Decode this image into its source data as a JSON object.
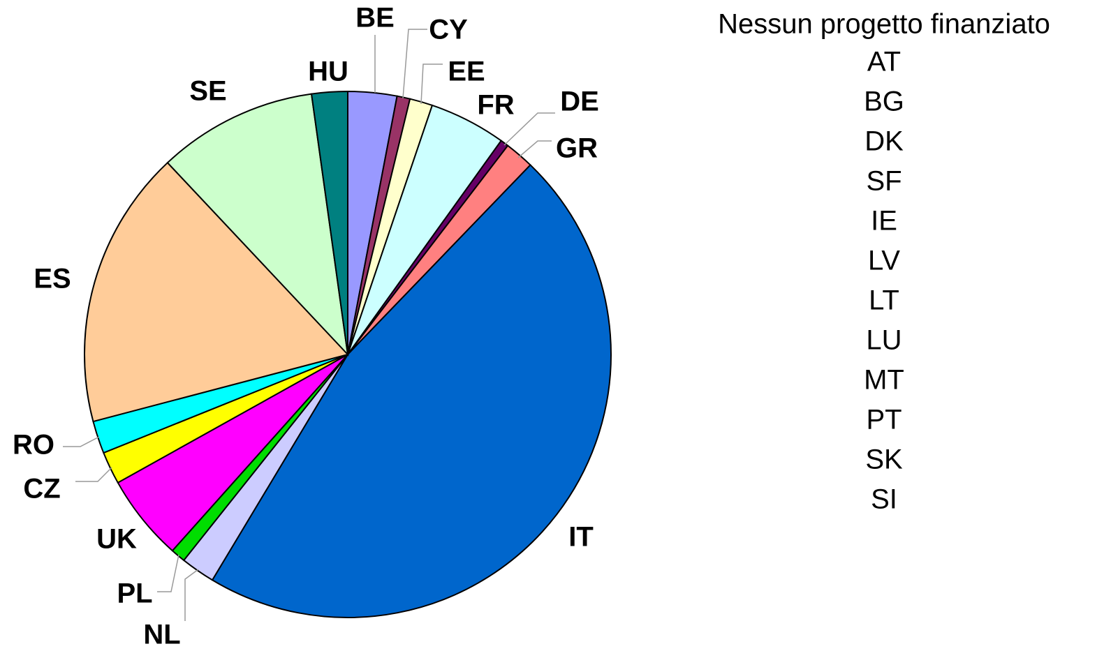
{
  "chart_data": {
    "type": "pie",
    "categories": [
      "BE",
      "CY",
      "EE",
      "FR",
      "DE",
      "GR",
      "IT",
      "NL",
      "PL",
      "UK",
      "CZ",
      "RO",
      "ES",
      "SE",
      "HU"
    ],
    "values": [
      3.0,
      0.8,
      1.4,
      4.7,
      0.5,
      1.8,
      46.4,
      2.1,
      0.9,
      5.3,
      2.0,
      2.0,
      17.1,
      9.8,
      2.2
    ],
    "colors": [
      "#9999ff",
      "#993366",
      "#ffffcc",
      "#ccffff",
      "#660066",
      "#ff8080",
      "#0066cc",
      "#ccccff",
      "#00dd00",
      "#ff00ff",
      "#ffff00",
      "#00ffff",
      "#ffcc99",
      "#ccffcc",
      "#008080"
    ],
    "note_title": "Nessun progetto finanziato",
    "note_items": [
      "AT",
      "BG",
      "DK",
      "SF",
      "IE",
      "LV",
      "LT",
      "LU",
      "MT",
      "PT",
      "SK",
      "SI"
    ]
  }
}
